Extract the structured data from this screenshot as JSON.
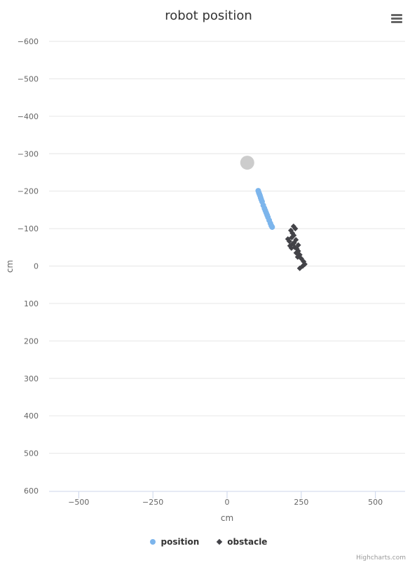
{
  "chart_data": {
    "type": "scatter",
    "title": "robot position",
    "xlabel": "cm",
    "ylabel": "cm",
    "xlim": [
      -600,
      600
    ],
    "ylim": [
      -600,
      600
    ],
    "y_reversed": true,
    "x_ticks": [
      -500,
      -250,
      0,
      250,
      500
    ],
    "y_ticks": [
      -600,
      -500,
      -400,
      -300,
      -200,
      -100,
      0,
      100,
      200,
      300,
      400,
      500,
      600
    ],
    "grid": true,
    "legend_position": "bottom-center",
    "series": [
      {
        "name": "position",
        "color": "#7cb5ec",
        "marker": "circle",
        "points": [
          [
            105,
            -201
          ],
          [
            107,
            -196
          ],
          [
            109,
            -192
          ],
          [
            111,
            -188
          ],
          [
            113,
            -183
          ],
          [
            115,
            -178
          ],
          [
            118,
            -172
          ],
          [
            122,
            -162
          ],
          [
            126,
            -154
          ],
          [
            129,
            -148
          ],
          [
            132,
            -142
          ],
          [
            135,
            -136
          ],
          [
            138,
            -130
          ],
          [
            142,
            -122
          ],
          [
            146,
            -114
          ],
          [
            149,
            -108
          ],
          [
            152,
            -104
          ]
        ]
      },
      {
        "name": "obstacle",
        "color": "#434348",
        "marker": "diamond",
        "points": [
          [
            215,
            -95
          ],
          [
            220,
            -88
          ],
          [
            225,
            -82
          ],
          [
            230,
            -100
          ],
          [
            218,
            -76
          ],
          [
            205,
            -72
          ],
          [
            210,
            -66
          ],
          [
            222,
            -60
          ],
          [
            212,
            -54
          ],
          [
            228,
            -50
          ],
          [
            235,
            -46
          ],
          [
            240,
            -40
          ],
          [
            233,
            -35
          ],
          [
            245,
            -30
          ],
          [
            238,
            -24
          ],
          [
            250,
            -20
          ],
          [
            258,
            -12
          ],
          [
            262,
            -5
          ],
          [
            255,
            0
          ],
          [
            245,
            6
          ],
          [
            232,
            -70
          ],
          [
            226,
            -62
          ],
          [
            217,
            -48
          ],
          [
            240,
            -56
          ],
          [
            224,
            -106
          ]
        ]
      },
      {
        "name": "",
        "color": "#cccccc",
        "marker": "large-circle",
        "points": [
          [
            68,
            -276
          ]
        ]
      }
    ]
  }
}
